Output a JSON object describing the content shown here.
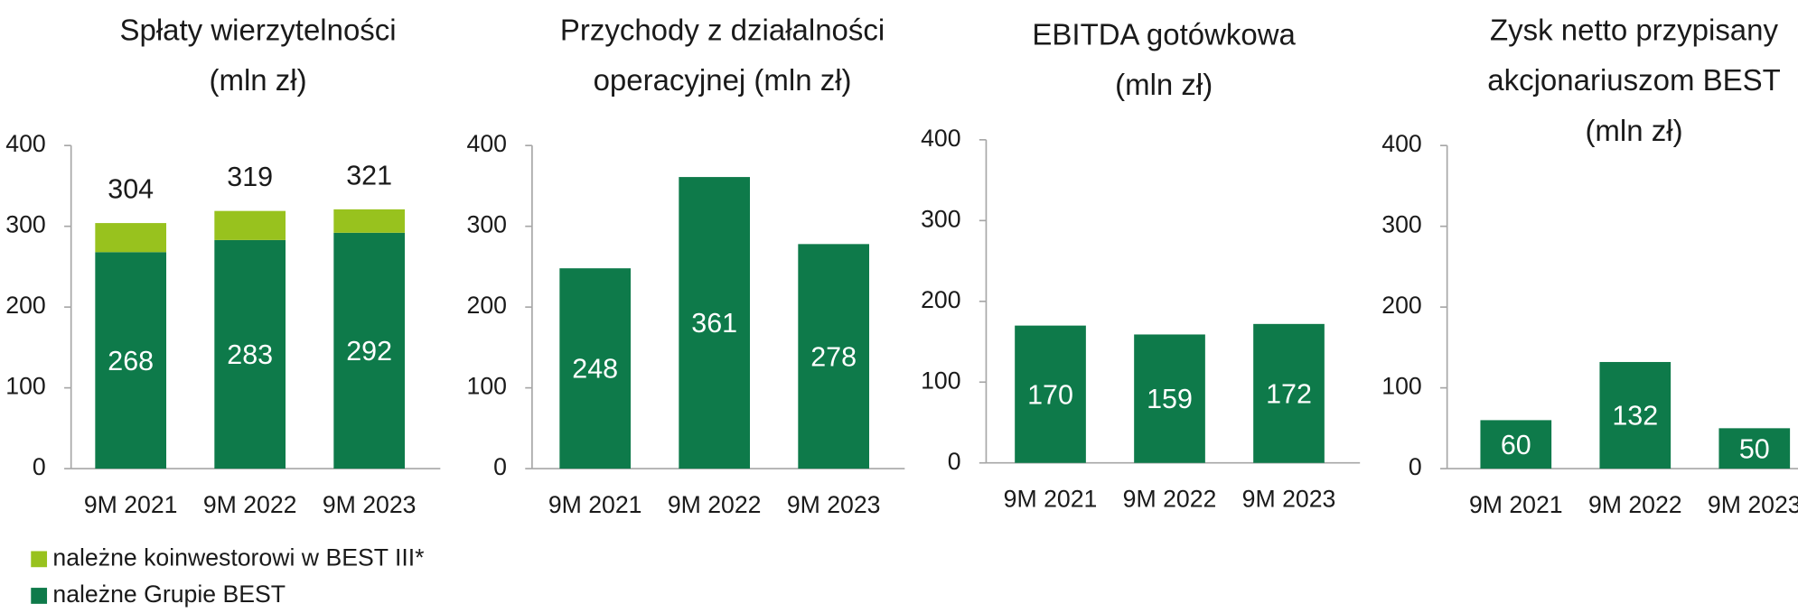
{
  "chart_data": [
    {
      "type": "stacked_bar",
      "title": [
        "Spłaty wierzytelności",
        "(mln zł)"
      ],
      "categories": [
        "9M 2021",
        "9M 2022",
        "9M 2023"
      ],
      "series": [
        {
          "name": "należne Grupie BEST",
          "color": "#0e7a4a",
          "values": [
            268,
            283,
            292
          ],
          "show_labels": true
        },
        {
          "name": "należne koinwestorowi w BEST III*",
          "color": "#98c21e",
          "values": [
            36,
            36,
            29
          ],
          "show_labels": false
        }
      ],
      "total_labels": [
        304,
        319,
        321
      ],
      "ylim": [
        0,
        400
      ],
      "yticks": [
        0,
        100,
        200,
        300,
        400
      ]
    },
    {
      "type": "bar",
      "title": [
        "Przychody z działalności",
        "operacyjnej (mln zł)"
      ],
      "categories": [
        "9M 2021",
        "9M 2022",
        "9M 2023"
      ],
      "values": [
        248,
        361,
        278
      ],
      "color": "#0e7a4a",
      "ylim": [
        0,
        400
      ],
      "yticks": [
        0,
        100,
        200,
        300,
        400
      ]
    },
    {
      "type": "bar",
      "title": [
        "EBITDA gotówkowa",
        "(mln zł)"
      ],
      "categories": [
        "9M 2021",
        "9M 2022",
        "9M 2023"
      ],
      "values": [
        170,
        159,
        172
      ],
      "color": "#0e7a4a",
      "ylim": [
        0,
        400
      ],
      "yticks": [
        0,
        100,
        200,
        300,
        400
      ]
    },
    {
      "type": "bar",
      "title": [
        "Zysk netto przypisany",
        "akcjonariuszom BEST",
        "(mln zł)"
      ],
      "categories": [
        "9M 2021",
        "9M 2022",
        "9M 2023"
      ],
      "values": [
        60,
        132,
        50
      ],
      "color": "#0e7a4a",
      "ylim": [
        0,
        400
      ],
      "yticks": [
        0,
        100,
        200,
        300,
        400
      ]
    }
  ]
}
